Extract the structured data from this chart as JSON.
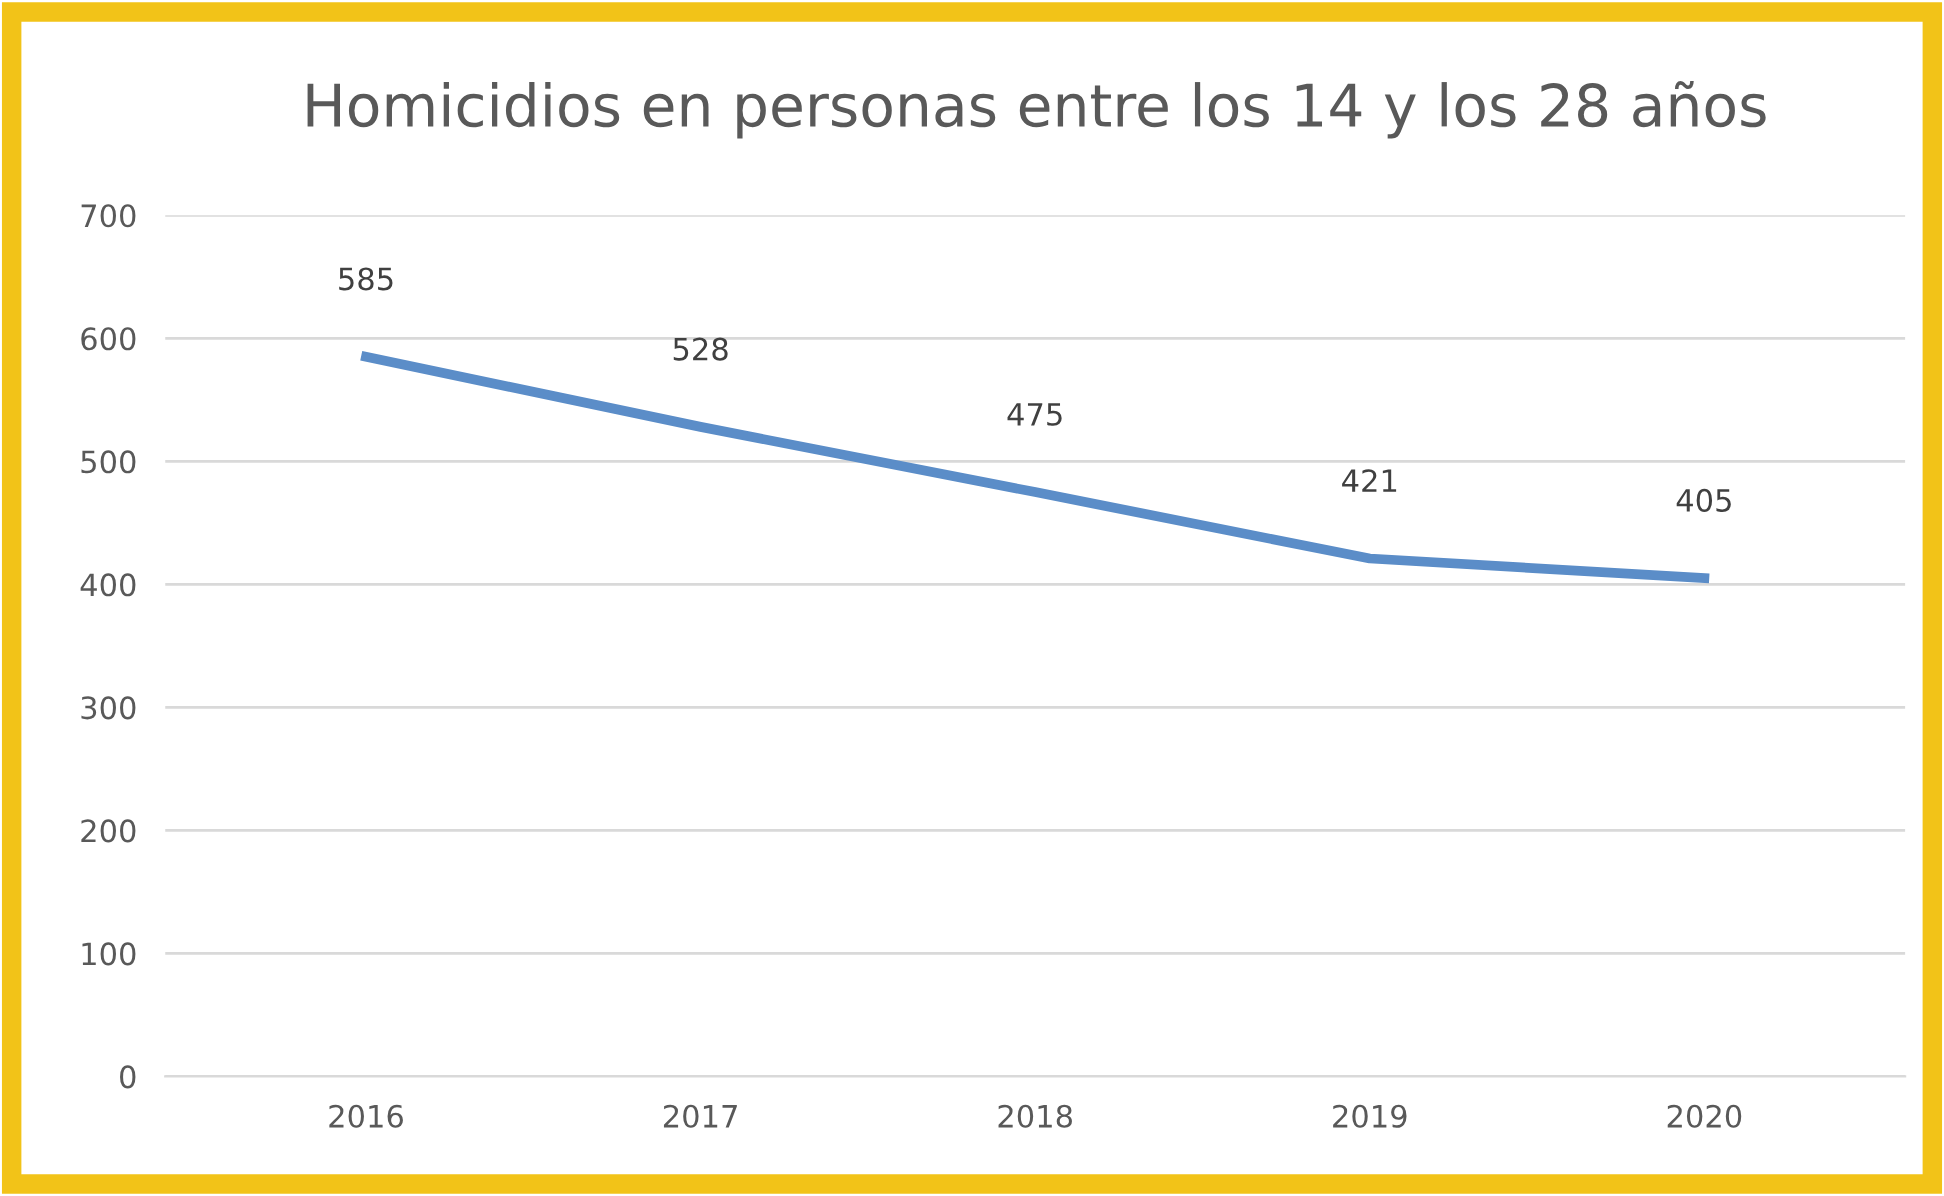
{
  "chart_data": {
    "type": "line",
    "title": "Homicidios en personas entre los 14 y los 28 años",
    "categories": [
      "2016",
      "2017",
      "2018",
      "2019",
      "2020"
    ],
    "series": [
      {
        "color": "#5b8dc8",
        "values": [
          585,
          528,
          475,
          421,
          405
        ]
      }
    ],
    "ylim": [
      0,
      700
    ],
    "yticks": [
      0,
      100,
      200,
      300,
      400,
      500,
      600,
      700
    ],
    "grid": "y",
    "data_labels": true,
    "legend": false,
    "marker": "none",
    "line_style": "solid"
  }
}
